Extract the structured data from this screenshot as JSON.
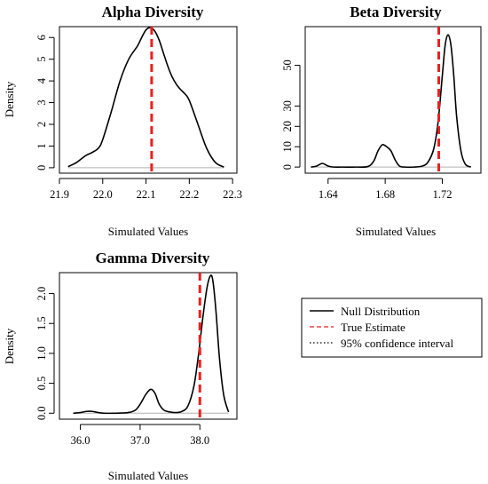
{
  "colors": {
    "density": "#000000",
    "estimate": "#e8211f",
    "baseline": "#b0b0b0",
    "frame": "#000000"
  },
  "chart_data": [
    {
      "type": "line",
      "title": "Alpha Diversity",
      "xlabel": "Simulated Values",
      "ylabel": "Density",
      "xlim": [
        21.9,
        22.31
      ],
      "ylim": [
        -0.25,
        6.5
      ],
      "xticks": [
        21.9,
        22.0,
        22.1,
        22.2,
        22.3
      ],
      "xtick_labels": [
        "21.9",
        "22.0",
        "22.1",
        "22.2",
        "22.3"
      ],
      "yticks": [
        0,
        1,
        2,
        3,
        4,
        5,
        6
      ],
      "ytick_labels": [
        "0",
        "1",
        "2",
        "3",
        "4",
        "5",
        "6"
      ],
      "true_estimate": 22.113,
      "density": {
        "x": [
          21.92,
          21.94,
          21.96,
          21.975,
          21.99,
          22.0,
          22.02,
          22.04,
          22.06,
          22.08,
          22.09,
          22.1,
          22.11,
          22.12,
          22.13,
          22.14,
          22.15,
          22.16,
          22.17,
          22.18,
          22.19,
          22.2,
          22.22,
          22.24,
          22.26,
          22.28
        ],
        "y": [
          0.05,
          0.25,
          0.55,
          0.7,
          0.9,
          1.3,
          2.6,
          4.0,
          5.0,
          5.6,
          6.0,
          6.35,
          6.45,
          6.3,
          5.9,
          5.3,
          4.7,
          4.2,
          3.85,
          3.6,
          3.4,
          3.1,
          2.0,
          0.9,
          0.25,
          0.03
        ]
      }
    },
    {
      "type": "line",
      "title": "Beta Diversity",
      "xlabel": "Simulated Values",
      "ylabel": "",
      "xlim": [
        1.624,
        1.747
      ],
      "ylim": [
        -3,
        69
      ],
      "xticks": [
        1.64,
        1.68,
        1.72
      ],
      "xtick_labels": [
        "1.64",
        "1.68",
        "1.72"
      ],
      "yticks": [
        0,
        10,
        20,
        30,
        50
      ],
      "ytick_labels": [
        "0",
        "10",
        "20",
        "30",
        "50"
      ],
      "true_estimate": 1.7175,
      "density": {
        "x": [
          1.628,
          1.632,
          1.636,
          1.64,
          1.644,
          1.65,
          1.66,
          1.668,
          1.672,
          1.675,
          1.678,
          1.681,
          1.684,
          1.687,
          1.69,
          1.694,
          1.7,
          1.706,
          1.71,
          1.714,
          1.717,
          1.72,
          1.722,
          1.724,
          1.726,
          1.728,
          1.73,
          1.733,
          1.736,
          1.74
        ],
        "y": [
          0,
          0.5,
          1.8,
          0.5,
          0,
          0,
          0,
          0.3,
          3.0,
          8.0,
          11.0,
          10.0,
          8.0,
          3.5,
          0.5,
          0,
          0,
          0.5,
          2.5,
          9.0,
          22.0,
          45.0,
          60.0,
          65.0,
          60.0,
          45.0,
          25.0,
          8.0,
          1.5,
          0
        ]
      }
    },
    {
      "type": "line",
      "title": "Gamma Diversity",
      "xlabel": "Simulated Values",
      "ylabel": "Density",
      "xlim": [
        35.65,
        38.62
      ],
      "ylim": [
        -0.1,
        2.35
      ],
      "xticks": [
        36.0,
        37.0,
        38.0
      ],
      "xtick_labels": [
        "36.0",
        "37.0",
        "38.0"
      ],
      "yticks": [
        0.0,
        0.5,
        1.0,
        1.5,
        2.0
      ],
      "ytick_labels": [
        "0.0",
        "0.5",
        "1.0",
        "1.5",
        "2.0"
      ],
      "true_estimate": 38.0,
      "density": {
        "x": [
          35.88,
          36.0,
          36.1,
          36.2,
          36.3,
          36.4,
          36.6,
          36.8,
          36.92,
          37.0,
          37.1,
          37.18,
          37.25,
          37.32,
          37.4,
          37.5,
          37.6,
          37.7,
          37.8,
          37.9,
          37.98,
          38.05,
          38.12,
          38.18,
          38.22,
          38.27,
          38.33,
          38.4,
          38.48
        ],
        "y": [
          0,
          0.01,
          0.03,
          0.03,
          0.01,
          0,
          0,
          0.01,
          0.05,
          0.15,
          0.32,
          0.4,
          0.33,
          0.15,
          0.05,
          0.02,
          0.01,
          0.03,
          0.12,
          0.45,
          1.0,
          1.6,
          2.1,
          2.3,
          2.2,
          1.7,
          0.9,
          0.3,
          0.02
        ]
      }
    }
  ],
  "legend": {
    "items": [
      {
        "label": "Null Distribution",
        "style": "solid",
        "color": "#000000"
      },
      {
        "label": "True Estimate",
        "style": "dashed",
        "color": "#e8211f"
      },
      {
        "label": "95% confidence interval",
        "style": "dotted",
        "color": "#000000"
      }
    ]
  }
}
